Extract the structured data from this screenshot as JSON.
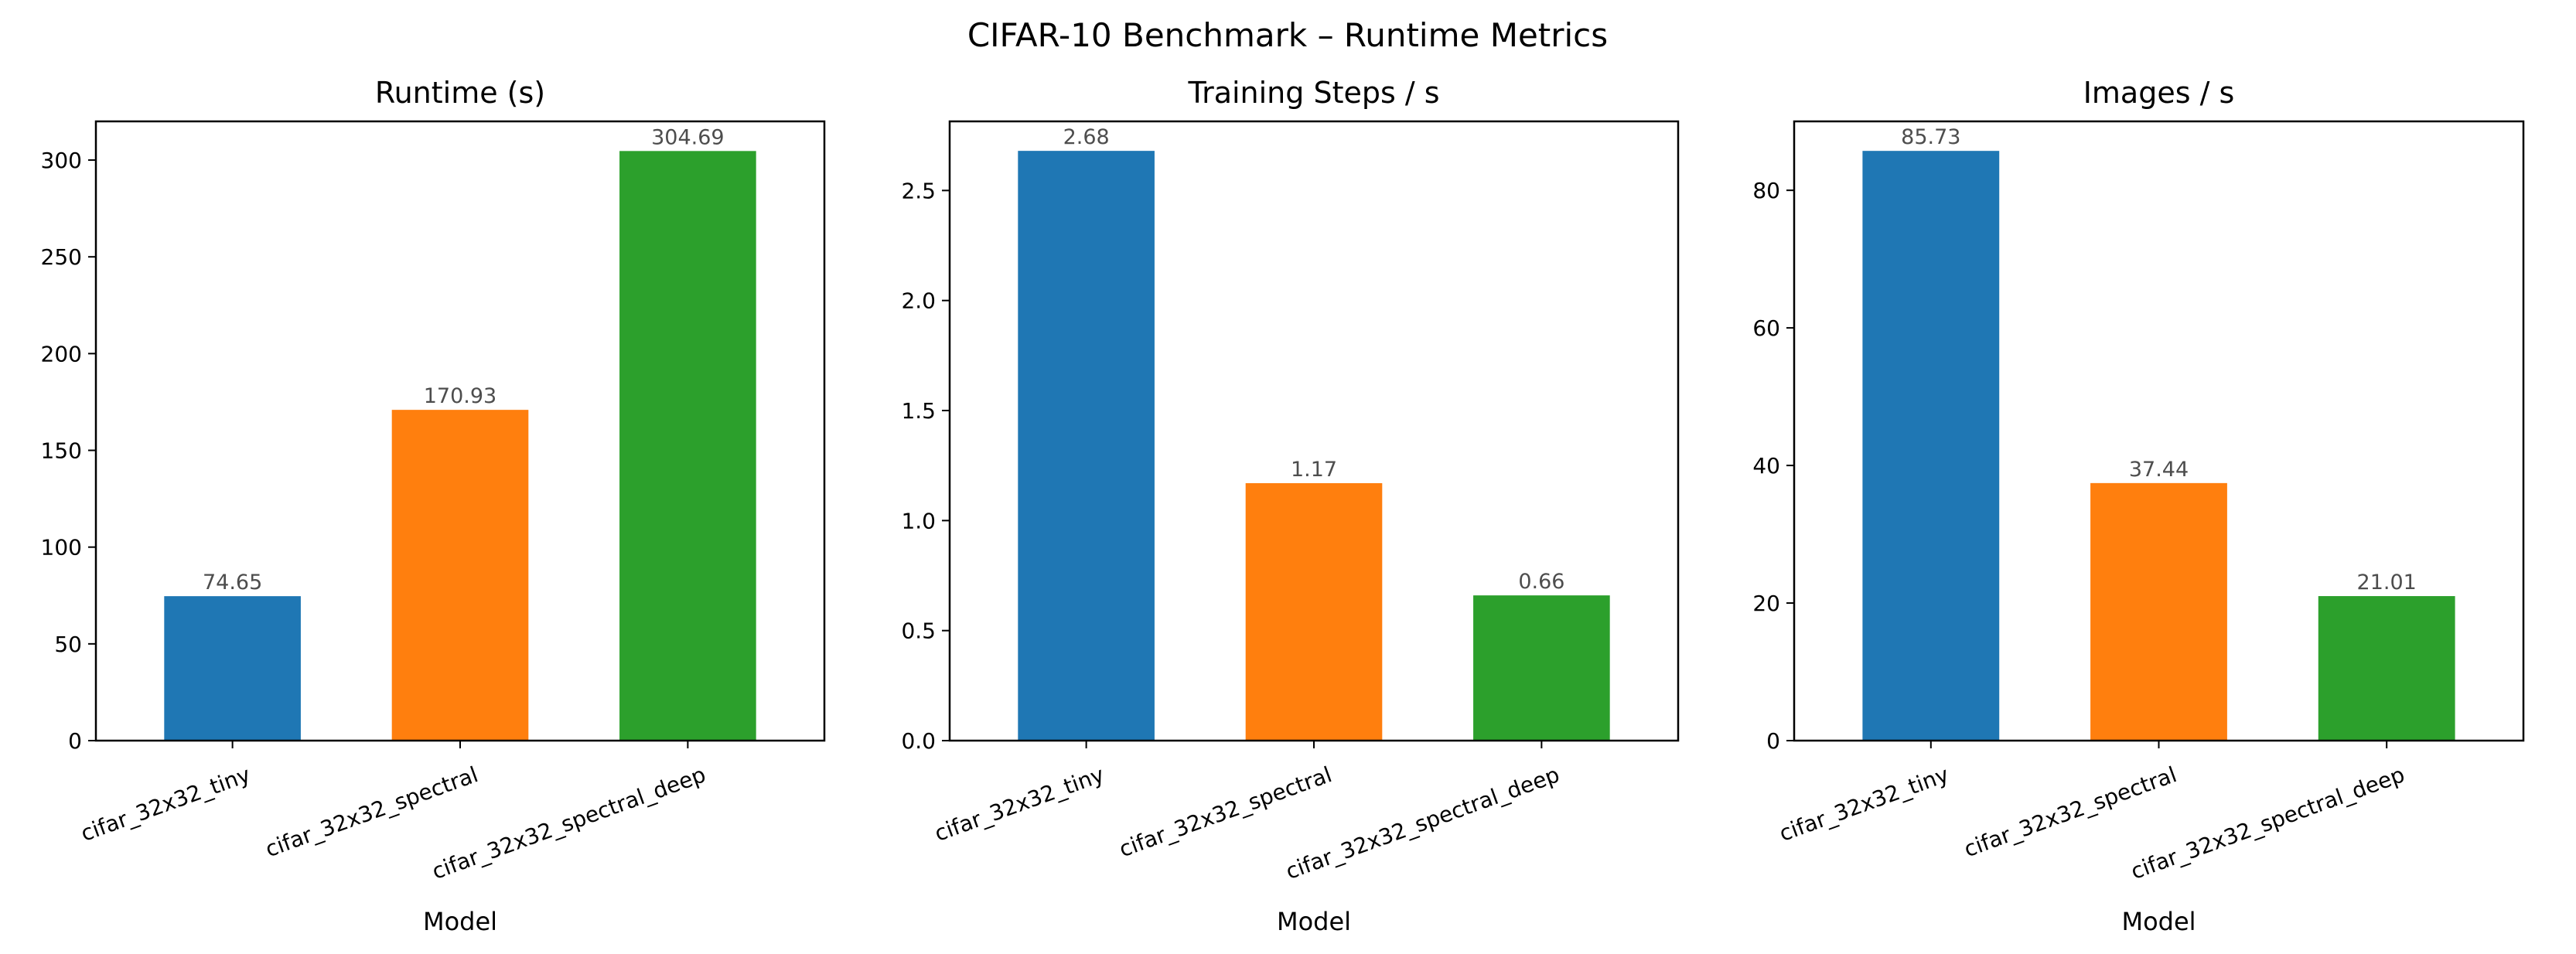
{
  "figure": {
    "title": "CIFAR-10 Benchmark – Runtime Metrics"
  },
  "chart_data": [
    {
      "type": "bar",
      "title": "Runtime (s)",
      "xlabel": "Model",
      "ylabel": "",
      "categories": [
        "cifar_32x32_tiny",
        "cifar_32x32_spectral",
        "cifar_32x32_spectral_deep"
      ],
      "values": [
        74.65,
        170.93,
        304.69
      ],
      "value_labels": [
        "74.65",
        "170.93",
        "304.69"
      ],
      "colors": [
        "#1f77b4",
        "#ff7f0e",
        "#2ca02c"
      ],
      "ylim": [
        0,
        320
      ],
      "yticks": [
        0,
        50,
        100,
        150,
        200,
        250,
        300
      ],
      "ytick_labels": [
        "0",
        "50",
        "100",
        "150",
        "200",
        "250",
        "300"
      ],
      "grid": false,
      "legend": "none"
    },
    {
      "type": "bar",
      "title": "Training Steps / s",
      "xlabel": "Model",
      "ylabel": "",
      "categories": [
        "cifar_32x32_tiny",
        "cifar_32x32_spectral",
        "cifar_32x32_spectral_deep"
      ],
      "values": [
        2.68,
        1.17,
        0.66
      ],
      "value_labels": [
        "2.68",
        "1.17",
        "0.66"
      ],
      "colors": [
        "#1f77b4",
        "#ff7f0e",
        "#2ca02c"
      ],
      "ylim": [
        0,
        2.814
      ],
      "yticks": [
        0,
        0.5,
        1.0,
        1.5,
        2.0,
        2.5
      ],
      "ytick_labels": [
        "0.0",
        "0.5",
        "1.0",
        "1.5",
        "2.0",
        "2.5"
      ],
      "grid": false,
      "legend": "none"
    },
    {
      "type": "bar",
      "title": "Images / s",
      "xlabel": "Model",
      "ylabel": "",
      "categories": [
        "cifar_32x32_tiny",
        "cifar_32x32_spectral",
        "cifar_32x32_spectral_deep"
      ],
      "values": [
        85.73,
        37.44,
        21.01
      ],
      "value_labels": [
        "85.73",
        "37.44",
        "21.01"
      ],
      "colors": [
        "#1f77b4",
        "#ff7f0e",
        "#2ca02c"
      ],
      "ylim": [
        0,
        90.02
      ],
      "yticks": [
        0,
        20,
        40,
        60,
        80
      ],
      "ytick_labels": [
        "0",
        "20",
        "40",
        "60",
        "80"
      ],
      "grid": false,
      "legend": "none"
    }
  ]
}
